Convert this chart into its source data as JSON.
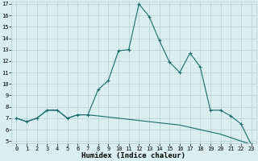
{
  "xlabel": "Humidex (Indice chaleur)",
  "ylabel": "",
  "x": [
    0,
    1,
    2,
    3,
    4,
    5,
    6,
    7,
    8,
    9,
    10,
    11,
    12,
    13,
    14,
    15,
    16,
    17,
    18,
    19,
    20,
    21,
    22,
    23
  ],
  "line1_y": [
    7.0,
    6.7,
    7.0,
    7.7,
    7.7,
    7.0,
    7.3,
    7.3,
    9.5,
    10.3,
    12.9,
    13.0,
    17.0,
    15.9,
    13.8,
    11.9,
    11.0,
    12.7,
    11.5,
    7.7,
    7.7,
    7.2,
    6.5,
    4.7
  ],
  "line2_y": [
    7.0,
    6.7,
    7.0,
    7.7,
    7.7,
    7.0,
    7.3,
    7.3,
    7.2,
    7.1,
    7.0,
    6.9,
    6.8,
    6.7,
    6.6,
    6.5,
    6.4,
    6.2,
    6.0,
    5.8,
    5.6,
    5.3,
    5.0,
    4.7
  ],
  "line_color": "#1a6b6b",
  "bg_color": "#d8eef0",
  "grid_color": "#b8cfd4",
  "ylim": [
    5,
    17
  ],
  "xlim": [
    -0.5,
    23.5
  ],
  "yticks": [
    5,
    6,
    7,
    8,
    9,
    10,
    11,
    12,
    13,
    14,
    15,
    16,
    17
  ],
  "xticks": [
    0,
    1,
    2,
    3,
    4,
    5,
    6,
    7,
    8,
    9,
    10,
    11,
    12,
    13,
    14,
    15,
    16,
    17,
    18,
    19,
    20,
    21,
    22,
    23
  ],
  "tick_fontsize": 5.0,
  "xlabel_fontsize": 6.5
}
